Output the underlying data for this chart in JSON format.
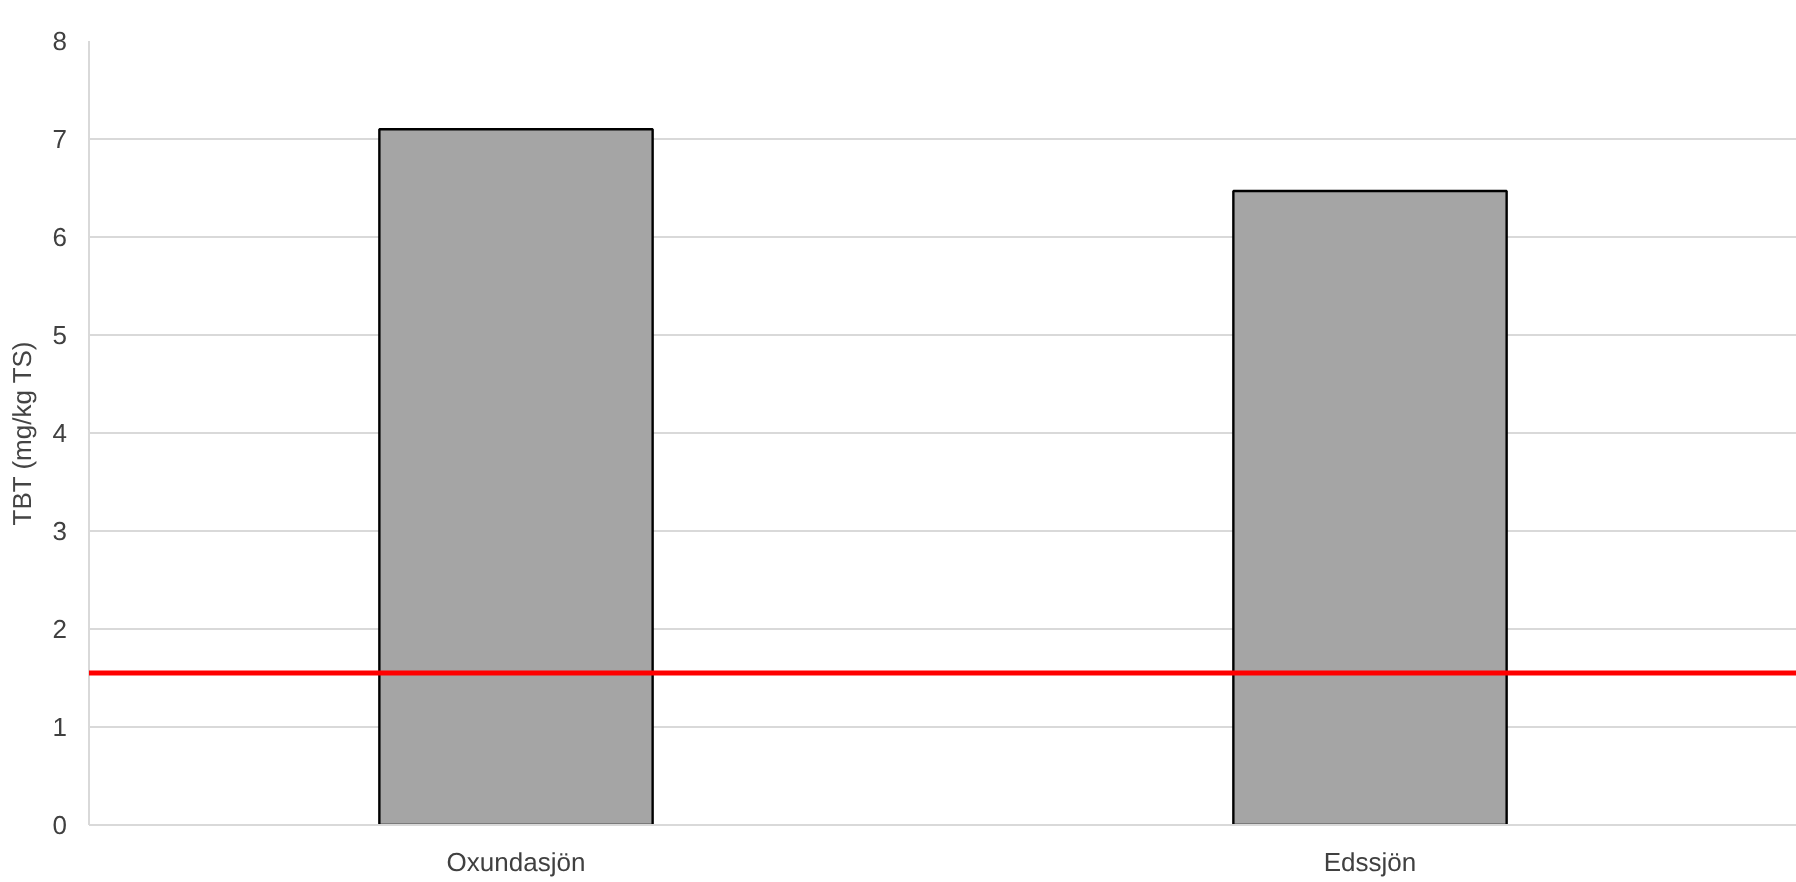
{
  "chart_data": {
    "type": "bar",
    "ylabel": "TBT (mg/kg TS)",
    "categories": [
      "Oxundasjön",
      "Edssjön"
    ],
    "values": [
      7.1,
      6.47
    ],
    "color": "#a5a5a5",
    "ylim": [
      0,
      8
    ],
    "yticks": [
      0,
      1,
      2,
      3,
      4,
      5,
      6,
      7,
      8
    ],
    "grid": "y",
    "ref_lines": [
      {
        "axis": "y",
        "value": 1.55,
        "color": "#ff0000"
      }
    ]
  }
}
